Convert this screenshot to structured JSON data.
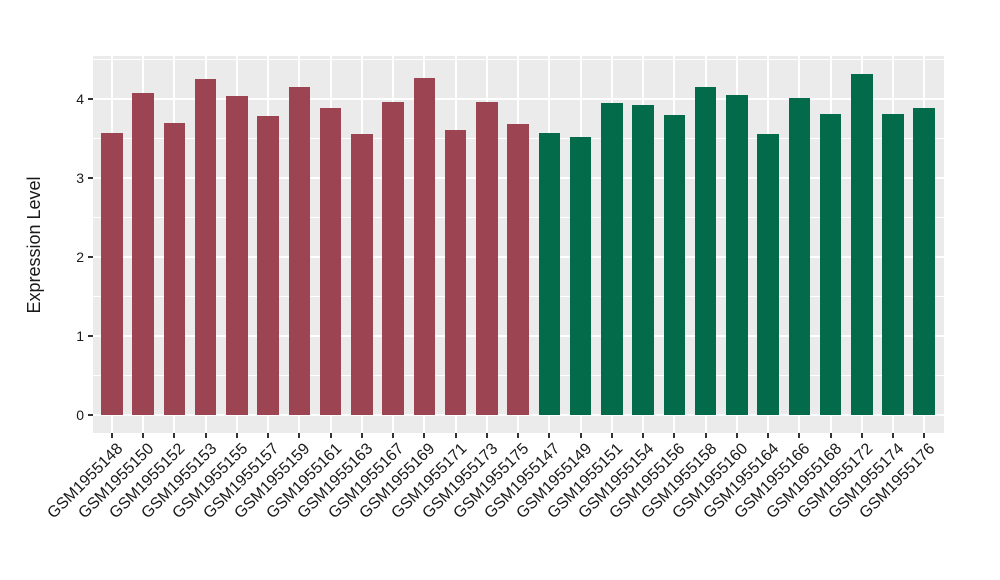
{
  "style": {
    "background": "#FFFFFF",
    "panel_background": "#EBEBEB",
    "grid_color": "#FFFFFF",
    "tick_color": "#333333",
    "axis_text_color": "#1A1A1A"
  },
  "chart_data": {
    "type": "bar",
    "title": "",
    "xlabel": "",
    "ylabel": "Expression Level",
    "ylim": [
      -0.22,
      4.53
    ],
    "yticks": [
      0,
      1,
      2,
      3,
      4
    ],
    "yticks_minor": [
      0.5,
      1.5,
      2.5,
      3.5,
      4.5
    ],
    "grid": "ggplot-style: gray panel, white major/minor horizontal gridlines, white vertical gridline per category",
    "legend": false,
    "palette": [
      "#9C4451",
      "#036B4A"
    ],
    "categories": [
      "GSM1955148",
      "GSM1955150",
      "GSM1955152",
      "GSM1955153",
      "GSM1955155",
      "GSM1955157",
      "GSM1955159",
      "GSM1955161",
      "GSM1955163",
      "GSM1955167",
      "GSM1955169",
      "GSM1955171",
      "GSM1955173",
      "GSM1955175",
      "GSM1955147",
      "GSM1955149",
      "GSM1955151",
      "GSM1955154",
      "GSM1955156",
      "GSM1955158",
      "GSM1955160",
      "GSM1955164",
      "GSM1955166",
      "GSM1955168",
      "GSM1955172",
      "GSM1955174",
      "GSM1955176"
    ],
    "values": [
      3.57,
      4.08,
      3.7,
      4.25,
      4.04,
      3.78,
      4.15,
      3.89,
      3.56,
      3.96,
      4.27,
      3.61,
      3.96,
      3.68,
      3.57,
      3.52,
      3.95,
      3.92,
      3.8,
      4.15,
      4.05,
      3.56,
      4.01,
      3.81,
      4.32,
      3.81,
      3.88
    ],
    "color_index": [
      0,
      0,
      0,
      0,
      0,
      0,
      0,
      0,
      0,
      0,
      0,
      0,
      0,
      0,
      1,
      1,
      1,
      1,
      1,
      1,
      1,
      1,
      1,
      1,
      1,
      1,
      1
    ]
  }
}
